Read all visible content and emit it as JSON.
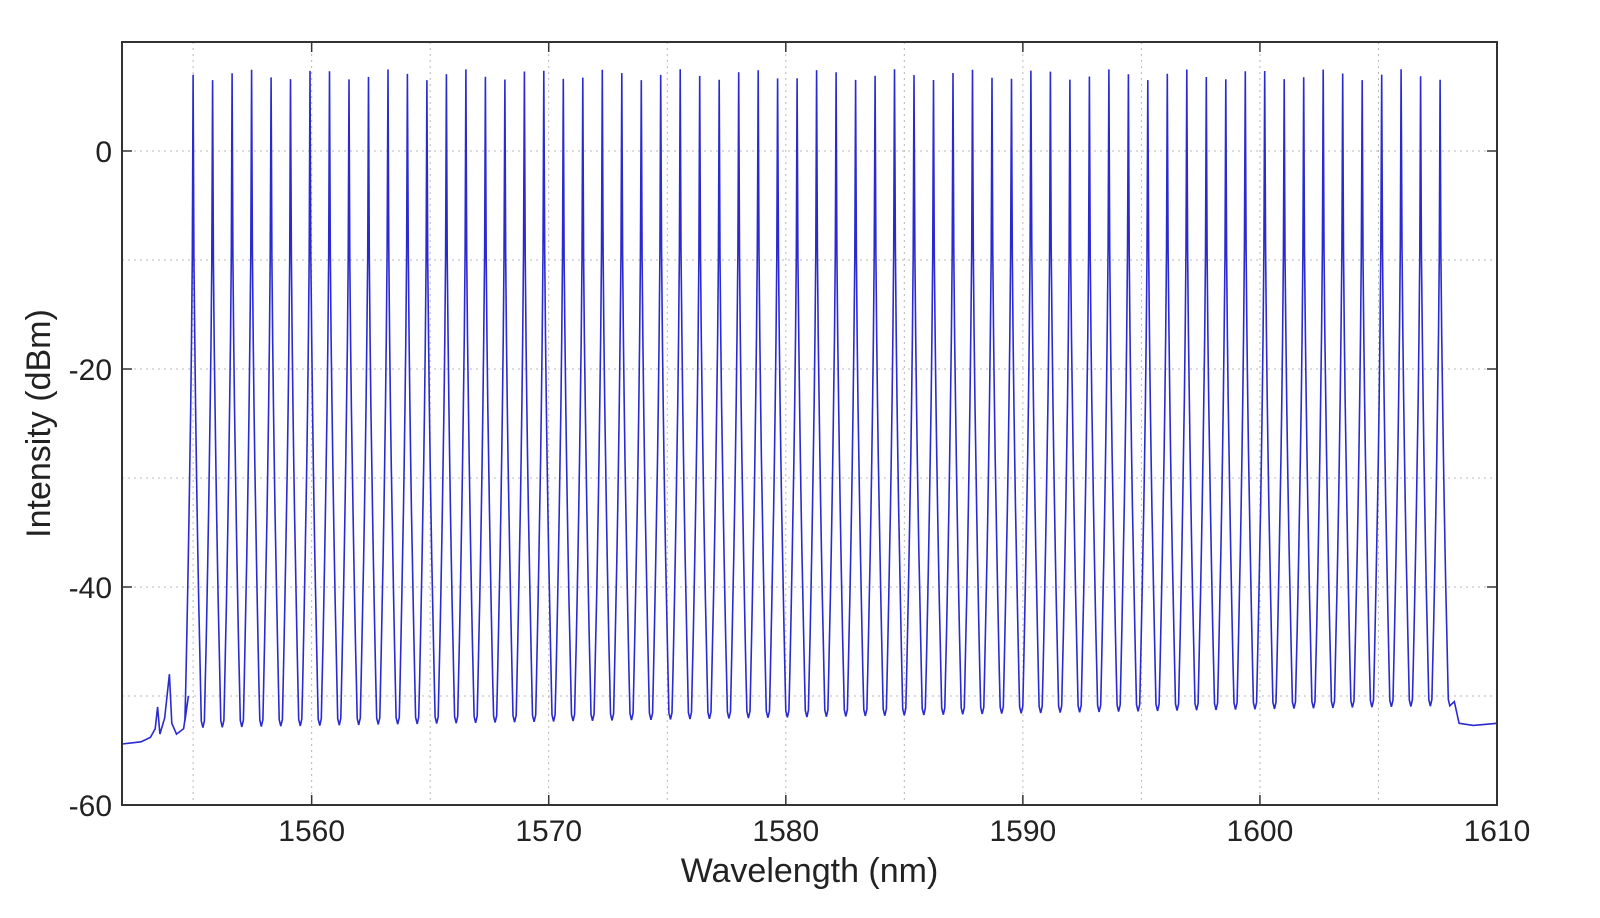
{
  "chart_data": {
    "type": "line",
    "xlabel": "Wavelength (nm)",
    "ylabel": "Intensity (dBm)",
    "xlim": [
      1552,
      1610
    ],
    "ylim": [
      -60,
      10
    ],
    "xticks": [
      1560,
      1570,
      1580,
      1590,
      1600,
      1610
    ],
    "yticks": [
      -60,
      -40,
      -20,
      0
    ],
    "grid": true,
    "line_color": "#2a2ad0",
    "series": [
      {
        "comb": {
          "first_line_nm": 1555.0,
          "last_line_nm": 1607.6,
          "line_count": 65,
          "peak_dBm": 7,
          "floor_dBm_start": -52.3,
          "floor_dBm_end": -50.3
        },
        "pre_comb_points": [
          [
            1552.0,
            -54.4
          ],
          [
            1552.8,
            -54.2
          ],
          [
            1553.2,
            -53.8
          ],
          [
            1553.4,
            -53.0
          ],
          [
            1553.5,
            -51.0
          ],
          [
            1553.6,
            -53.5
          ],
          [
            1553.8,
            -52.0
          ],
          [
            1554.0,
            -48.0
          ],
          [
            1554.1,
            -52.5
          ],
          [
            1554.3,
            -53.5
          ],
          [
            1554.6,
            -53.0
          ],
          [
            1554.8,
            -50.0
          ]
        ],
        "post_comb_points": [
          [
            1608.2,
            -50.5
          ],
          [
            1608.4,
            -52.5
          ],
          [
            1609.0,
            -52.7
          ],
          [
            1610.0,
            -52.5
          ]
        ]
      }
    ]
  }
}
